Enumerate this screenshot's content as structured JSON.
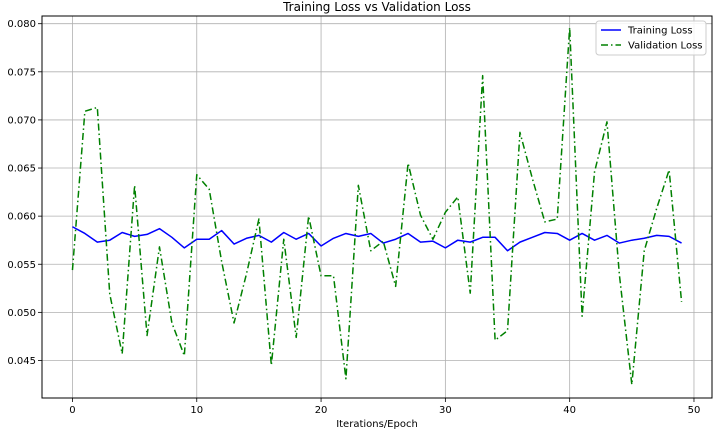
{
  "chart_data": {
    "type": "line",
    "title": "Training Loss vs Validation Loss",
    "xlabel": "Iterations/Epoch",
    "ylabel": "",
    "xlim": [
      -2.45,
      51.45
    ],
    "ylim": [
      0.0411,
      0.0808
    ],
    "xticks": [
      0,
      10,
      20,
      30,
      40,
      50
    ],
    "xtick_labels": [
      "0",
      "10",
      "20",
      "30",
      "40",
      "50"
    ],
    "yticks": [
      0.045,
      0.05,
      0.055,
      0.06,
      0.065,
      0.07,
      0.075,
      0.08
    ],
    "ytick_labels": [
      "0.045",
      "0.050",
      "0.055",
      "0.060",
      "0.065",
      "0.070",
      "0.075",
      "0.080"
    ],
    "grid": true,
    "legend_position": "top-right",
    "x": [
      0,
      1,
      2,
      3,
      4,
      5,
      6,
      7,
      8,
      9,
      10,
      11,
      12,
      13,
      14,
      15,
      16,
      17,
      18,
      19,
      20,
      21,
      22,
      23,
      24,
      25,
      26,
      27,
      28,
      29,
      30,
      31,
      32,
      33,
      34,
      35,
      36,
      37,
      38,
      39,
      40,
      41,
      42,
      43,
      44,
      45,
      46,
      47,
      48,
      49
    ],
    "series": [
      {
        "name": "Training Loss",
        "color": "#0000ff",
        "style": "solid",
        "values": [
          0.0589,
          0.0582,
          0.0573,
          0.0575,
          0.0583,
          0.0579,
          0.0581,
          0.0587,
          0.0578,
          0.0567,
          0.0576,
          0.0576,
          0.0585,
          0.0571,
          0.0577,
          0.058,
          0.0573,
          0.0583,
          0.0576,
          0.0582,
          0.0569,
          0.0577,
          0.0582,
          0.0579,
          0.0582,
          0.0572,
          0.0576,
          0.0582,
          0.0573,
          0.0574,
          0.0567,
          0.0575,
          0.0573,
          0.0578,
          0.0578,
          0.0564,
          0.0573,
          0.0578,
          0.0583,
          0.0582,
          0.0575,
          0.0582,
          0.0575,
          0.058,
          0.0572,
          0.0575,
          0.0577,
          0.058,
          0.0579,
          0.0572
        ]
      },
      {
        "name": "Validation Loss",
        "color": "#008000",
        "style": "dashdot",
        "values": [
          0.0544,
          0.0709,
          0.0713,
          0.0519,
          0.0457,
          0.0632,
          0.0476,
          0.0568,
          0.0489,
          0.0455,
          0.0643,
          0.0628,
          0.0553,
          0.0489,
          0.054,
          0.0597,
          0.0445,
          0.0576,
          0.0474,
          0.06,
          0.0538,
          0.0538,
          0.0431,
          0.0632,
          0.0564,
          0.0574,
          0.0527,
          0.0655,
          0.0601,
          0.0576,
          0.0604,
          0.062,
          0.052,
          0.0746,
          0.0471,
          0.0481,
          0.0687,
          0.0639,
          0.0594,
          0.0597,
          0.0796,
          0.0496,
          0.0646,
          0.0698,
          0.0539,
          0.0425,
          0.0564,
          0.0608,
          0.0648,
          0.0511
        ]
      }
    ]
  }
}
